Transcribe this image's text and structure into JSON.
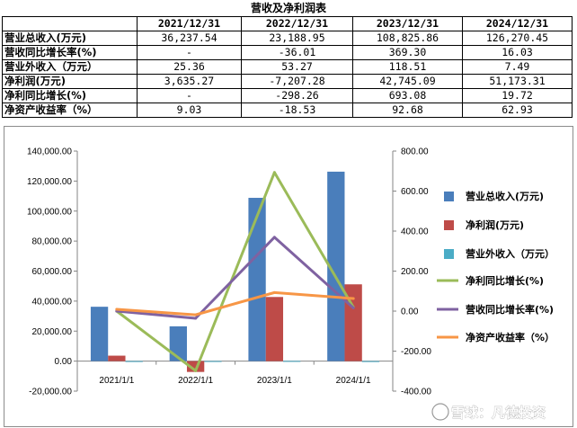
{
  "table": {
    "title": "营收及净利润表",
    "corner": "",
    "columns": [
      "2021/12/31",
      "2022/12/31",
      "2023/12/31",
      "2024/12/31"
    ],
    "rows": [
      {
        "label": "营业总收入(万元)",
        "values": [
          "36,237.54",
          "23,188.95",
          "108,825.86",
          "126,270.45"
        ]
      },
      {
        "label": "营收同比增长率(%)",
        "values": [
          "-",
          "-36.01",
          "369.30",
          "16.03"
        ]
      },
      {
        "label": "营业外收入（万元）",
        "values": [
          "25.36",
          "53.27",
          "118.51",
          "7.49"
        ]
      },
      {
        "label": "净利润(万元)",
        "values": [
          "3,635.27",
          "-7,207.28",
          "42,745.09",
          "51,173.31"
        ]
      },
      {
        "label": "净利同比增长(%)",
        "values": [
          "-",
          "-298.26",
          "693.08",
          "19.72"
        ]
      },
      {
        "label": "净资产收益率（%）",
        "values": [
          "9.03",
          "-18.53",
          "92.68",
          "62.93"
        ]
      }
    ]
  },
  "chart_data": {
    "type": "bar",
    "title": "",
    "categories": [
      "2021/1/1",
      "2022/1/1",
      "2023/1/1",
      "2024/1/1"
    ],
    "bar_series": [
      {
        "name": "营业总收入(万元)",
        "color": "#4a7ebb",
        "values": [
          36237.54,
          23188.95,
          108825.86,
          126270.45
        ]
      },
      {
        "name": "净利润(万元)",
        "color": "#be4b48",
        "values": [
          3635.27,
          -7207.28,
          42745.09,
          51173.31
        ]
      },
      {
        "name": "营业外收入（万元）",
        "color": "#4bacc6",
        "values": [
          25.36,
          53.27,
          118.51,
          7.49
        ]
      }
    ],
    "line_series": [
      {
        "name": "净利同比增长(%)",
        "color": "#9bbb59",
        "values": [
          0,
          -298.26,
          693.08,
          19.72
        ]
      },
      {
        "name": "营收同比增长率(%)",
        "color": "#7f62a1",
        "values": [
          0,
          -36.01,
          369.3,
          16.03
        ]
      },
      {
        "name": "净资产收益率（%）",
        "color": "#f79646",
        "values": [
          9.03,
          -18.53,
          92.68,
          62.93
        ]
      }
    ],
    "left_axis": {
      "min": -20000,
      "max": 140000,
      "step": 20000,
      "ticks": [
        "-20,000.00",
        "0.00",
        "20,000.00",
        "40,000.00",
        "60,000.00",
        "80,000.00",
        "100,000.00",
        "120,000.00",
        "140,000.00"
      ]
    },
    "right_axis": {
      "min": -400,
      "max": 800,
      "step": 200,
      "ticks": [
        "-400.00",
        "-200.00",
        "0.00",
        "200.00",
        "400.00",
        "600.00",
        "800.00"
      ]
    },
    "legend_position": "right"
  },
  "watermark": {
    "text": "雪球：凡德投资"
  }
}
